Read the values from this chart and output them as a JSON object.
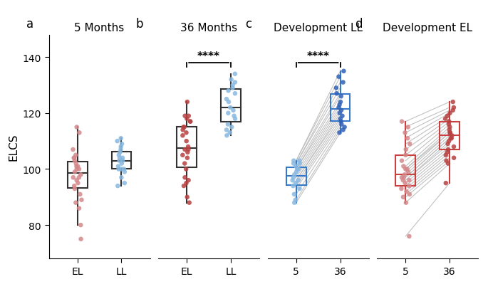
{
  "panel_a_title": "5 Months",
  "panel_b_title": "36 Months",
  "panel_c_title": "Development LL",
  "panel_d_title": "Development EL",
  "ylabel": "ELCS",
  "ylim": [
    68,
    148
  ],
  "yticks": [
    80,
    100,
    120,
    140
  ],
  "panel_a_EL": [
    115,
    113,
    107,
    105,
    104,
    104,
    103,
    102,
    101,
    101,
    100,
    100,
    99,
    98,
    97,
    97,
    96,
    95,
    94,
    93,
    91,
    89,
    88,
    86,
    80,
    75
  ],
  "panel_a_LL": [
    111,
    110,
    109,
    108,
    107,
    106,
    105,
    104,
    104,
    103,
    103,
    102,
    101,
    100,
    100,
    100,
    99,
    97,
    95,
    94
  ],
  "panel_b_EL": [
    124,
    119,
    119,
    118,
    117,
    117,
    115,
    115,
    114,
    113,
    112,
    110,
    108,
    107,
    107,
    106,
    105,
    104,
    102,
    100,
    97,
    96,
    95,
    94,
    90,
    88
  ],
  "panel_b_LL": [
    134,
    132,
    131,
    130,
    129,
    128,
    127,
    125,
    124,
    122,
    121,
    120,
    119,
    118,
    116,
    115,
    114,
    113,
    112
  ],
  "panel_c_LL_5": [
    103,
    103,
    102,
    102,
    101,
    100,
    100,
    99,
    98,
    97,
    96,
    96,
    95,
    94,
    93,
    91,
    89,
    88
  ],
  "panel_c_LL_36": [
    135,
    133,
    131,
    129,
    127,
    126,
    124,
    123,
    122,
    121,
    120,
    119,
    118,
    117,
    116,
    115,
    114,
    113
  ],
  "panel_d_EL_5": [
    117,
    115,
    113,
    111,
    109,
    107,
    105,
    103,
    101,
    100,
    100,
    99,
    98,
    97,
    97,
    96,
    96,
    95,
    94,
    93,
    92,
    91,
    90,
    88,
    76
  ],
  "panel_d_EL_36": [
    124,
    122,
    121,
    120,
    119,
    118,
    117,
    116,
    115,
    114,
    113,
    113,
    112,
    111,
    111,
    110,
    109,
    108,
    107,
    106,
    105,
    104,
    103,
    102,
    95
  ],
  "color_EL_dots": "#D4878A",
  "color_LL_dots": "#88B8E0",
  "color_EL_dark": "#B84040",
  "color_LL_dark": "#3060B8",
  "color_box_ab": "#333333",
  "color_box_c": "#3878C8",
  "color_box_d": "#C84040",
  "color_line": "#BBBBBB",
  "sig_b": "****",
  "sig_c": "****",
  "panel_labels": [
    "a",
    "b",
    "c",
    "d"
  ],
  "background_color": "#ffffff"
}
